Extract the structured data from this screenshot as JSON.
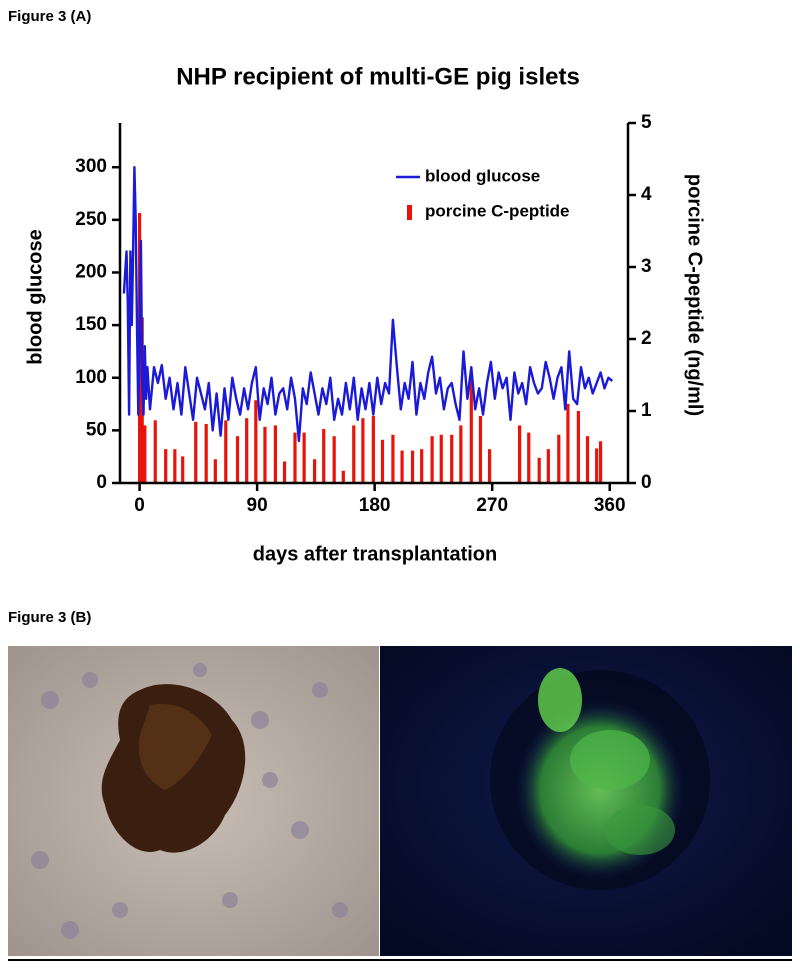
{
  "figure_labels": {
    "a": "Figure 3 (A)",
    "b": "Figure 3 (B)"
  },
  "chart_data": {
    "type": "line",
    "title": "NHP recipient of multi-GE pig islets",
    "xlabel": "days after transplantation",
    "ylabel": "blood  glucose",
    "y2label": "porcine C-peptide  (ng/ml)",
    "xlim": [
      -15,
      374
    ],
    "ylim": [
      0,
      342
    ],
    "y2lim": [
      0,
      5
    ],
    "xticks": [
      0,
      90,
      180,
      270,
      360
    ],
    "yticks": [
      0,
      50,
      100,
      150,
      200,
      250,
      300
    ],
    "y2ticks": [
      0,
      1,
      2,
      3,
      4,
      5
    ],
    "legend": "upper right",
    "series": [
      {
        "name": "blood glucose",
        "type": "line",
        "color": "#1a1ad8",
        "x": [
          -12,
          -10,
          -9,
          -8,
          -7,
          -6,
          -5,
          -4,
          -3,
          -2,
          -1,
          0,
          1,
          2,
          3,
          4,
          5,
          6,
          8,
          11,
          14,
          17,
          20,
          23,
          26,
          29,
          32,
          35,
          38,
          41,
          44,
          47,
          50,
          53,
          56,
          59,
          62,
          65,
          68,
          71,
          74,
          77,
          80,
          83,
          86,
          89,
          92,
          95,
          98,
          101,
          104,
          107,
          110,
          113,
          116,
          119,
          122,
          125,
          128,
          131,
          134,
          137,
          140,
          143,
          146,
          149,
          152,
          155,
          158,
          161,
          164,
          167,
          170,
          173,
          176,
          179,
          182,
          185,
          188,
          191,
          194,
          197,
          200,
          203,
          206,
          209,
          212,
          215,
          218,
          221,
          224,
          227,
          230,
          233,
          236,
          239,
          242,
          245,
          248,
          251,
          254,
          257,
          260,
          263,
          266,
          269,
          272,
          275,
          278,
          281,
          284,
          287,
          290,
          293,
          296,
          299,
          302,
          305,
          308,
          311,
          314,
          317,
          320,
          323,
          326,
          329,
          332,
          335,
          338,
          341,
          344,
          347,
          350,
          353,
          356,
          359,
          362
        ],
        "values": [
          180,
          220,
          170,
          65,
          220,
          150,
          220,
          300,
          250,
          150,
          65,
          140,
          230,
          100,
          65,
          130,
          80,
          110,
          70,
          110,
          95,
          112,
          80,
          100,
          70,
          95,
          65,
          110,
          85,
          60,
          100,
          85,
          70,
          95,
          50,
          85,
          45,
          90,
          60,
          100,
          80,
          65,
          90,
          70,
          95,
          110,
          60,
          90,
          75,
          100,
          65,
          85,
          90,
          70,
          100,
          80,
          40,
          90,
          75,
          105,
          85,
          65,
          90,
          75,
          100,
          60,
          80,
          65,
          95,
          70,
          100,
          60,
          90,
          70,
          95,
          65,
          100,
          75,
          95,
          85,
          155,
          110,
          70,
          95,
          80,
          115,
          65,
          95,
          80,
          105,
          120,
          85,
          100,
          70,
          90,
          95,
          75,
          60,
          125,
          80,
          110,
          70,
          90,
          65,
          95,
          115,
          80,
          105,
          90,
          100,
          60,
          105,
          85,
          95,
          75,
          110,
          95,
          85,
          90,
          115,
          100,
          80,
          100,
          110,
          70,
          125,
          80,
          75,
          110,
          90,
          100,
          85,
          95,
          105,
          90,
          100,
          97
        ]
      },
      {
        "name": "porcine C-peptide",
        "type": "bar",
        "axis": "y2",
        "color": "#e8140c",
        "x": [
          0,
          2,
          4,
          12,
          20,
          27,
          33,
          43,
          51,
          58,
          66,
          75,
          82,
          89,
          96,
          104,
          111,
          119,
          126,
          134,
          141,
          149,
          156,
          164,
          171,
          179,
          186,
          194,
          201,
          209,
          216,
          224,
          231,
          239,
          246,
          254,
          261,
          268,
          291,
          298,
          306,
          313,
          321,
          328,
          336,
          343,
          350,
          353
        ],
        "values": [
          3.75,
          2.3,
          0.8,
          0.87,
          0.47,
          0.47,
          0.37,
          0.85,
          0.82,
          0.33,
          0.87,
          0.65,
          0.9,
          1.15,
          0.78,
          0.8,
          0.3,
          0.7,
          0.7,
          0.33,
          0.75,
          0.65,
          0.17,
          0.8,
          0.9,
          0.93,
          0.6,
          0.67,
          0.45,
          0.45,
          0.47,
          0.65,
          0.67,
          0.67,
          0.8,
          1.5,
          0.93,
          0.47,
          0.8,
          0.7,
          0.35,
          0.47,
          0.67,
          1.1,
          1.0,
          0.65,
          0.48,
          0.58
        ]
      }
    ]
  }
}
